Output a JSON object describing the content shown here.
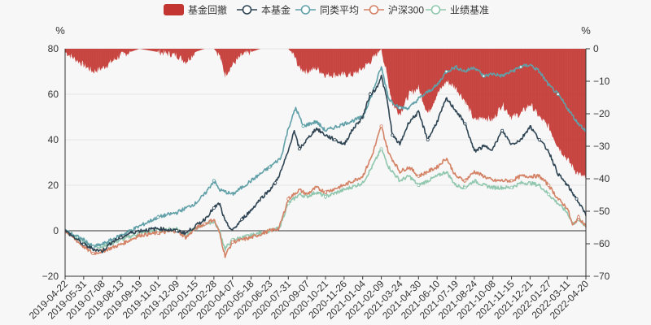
{
  "chart_data": {
    "type": "line",
    "left_axis": {
      "unit": "%",
      "min": -20,
      "max": 80,
      "ticks": [
        "80",
        "60",
        "40",
        "20",
        "0",
        "−20"
      ]
    },
    "right_axis": {
      "unit": "%",
      "min": -70,
      "max": 0,
      "ticks": [
        "0",
        "−10",
        "−20",
        "−30",
        "−40",
        "−50",
        "−60",
        "−70"
      ]
    },
    "x_tick_labels": [
      "2019-04-22",
      "2019-05-31",
      "2019-07-08",
      "2019-08-13",
      "2019-09-19",
      "2019-11-01",
      "2019-12-09",
      "2020-01-15",
      "2020-02-28",
      "2020-04-07",
      "2020-05-18",
      "2020-06-23",
      "2020-07-31",
      "2020-09-07",
      "2020-10-21",
      "2020-11-26",
      "2021-01-04",
      "2021-02-09",
      "2021-03-24",
      "2021-04-30",
      "2021-06-10",
      "2021-07-19",
      "2021-08-24",
      "2021-10-08",
      "2021-11-15",
      "2021-12-21",
      "2022-01-27",
      "2022-03-11",
      "2022-04-20"
    ],
    "legend": [
      {
        "name": "基金回撤",
        "color": "#c23531",
        "kind": "bar"
      },
      {
        "name": "本基金",
        "color": "#2f4554",
        "kind": "line"
      },
      {
        "name": "同类平均",
        "color": "#61a0a8",
        "kind": "line"
      },
      {
        "name": "沪深300",
        "color": "#d48265",
        "kind": "line"
      },
      {
        "name": "业绩基准",
        "color": "#91c7ae",
        "kind": "line"
      }
    ],
    "grid": true,
    "legend_position": "top-center",
    "series": [
      {
        "name": "本基金",
        "axis": "left",
        "color": "#2f4554",
        "points": [
          [
            0,
            0
          ],
          [
            0.5,
            -3
          ],
          [
            1,
            -6
          ],
          [
            1.5,
            -8
          ],
          [
            2,
            -9
          ],
          [
            2.5,
            -5
          ],
          [
            3,
            -3
          ],
          [
            3.5,
            -1
          ],
          [
            4,
            0
          ],
          [
            5,
            1
          ],
          [
            6,
            0
          ],
          [
            6.5,
            -1
          ],
          [
            7,
            2
          ],
          [
            7.5,
            5
          ],
          [
            8,
            10
          ],
          [
            8.3,
            12
          ],
          [
            8.6,
            4
          ],
          [
            9,
            0
          ],
          [
            9.5,
            5
          ],
          [
            10,
            9
          ],
          [
            10.5,
            14
          ],
          [
            11,
            18
          ],
          [
            11.3,
            21
          ],
          [
            11.6,
            26
          ],
          [
            12,
            35
          ],
          [
            12.3,
            44
          ],
          [
            12.6,
            36
          ],
          [
            13,
            40
          ],
          [
            13.5,
            45
          ],
          [
            14,
            42
          ],
          [
            14.5,
            40
          ],
          [
            15,
            38
          ],
          [
            15.5,
            45
          ],
          [
            16,
            50
          ],
          [
            16.4,
            60
          ],
          [
            16.7,
            62
          ],
          [
            17,
            68
          ],
          [
            17.3,
            58
          ],
          [
            17.6,
            42
          ],
          [
            18,
            38
          ],
          [
            18.5,
            48
          ],
          [
            19,
            52
          ],
          [
            19.5,
            40
          ],
          [
            20,
            48
          ],
          [
            20.5,
            58
          ],
          [
            21,
            53
          ],
          [
            21.5,
            47
          ],
          [
            22,
            35
          ],
          [
            22.5,
            37
          ],
          [
            23,
            36
          ],
          [
            23.5,
            44
          ],
          [
            24,
            38
          ],
          [
            24.5,
            40
          ],
          [
            25,
            46
          ],
          [
            25.5,
            40
          ],
          [
            26,
            35
          ],
          [
            26.5,
            25
          ],
          [
            27,
            20
          ],
          [
            27.5,
            14
          ],
          [
            28,
            7
          ]
        ]
      },
      {
        "name": "同类平均",
        "axis": "left",
        "color": "#61a0a8",
        "points": [
          [
            0,
            0
          ],
          [
            1,
            -4
          ],
          [
            1.5,
            -7
          ],
          [
            2,
            -6
          ],
          [
            3,
            -2
          ],
          [
            4,
            2
          ],
          [
            5,
            6
          ],
          [
            6,
            8
          ],
          [
            7,
            12
          ],
          [
            7.5,
            16
          ],
          [
            8,
            22
          ],
          [
            8.3,
            18
          ],
          [
            9,
            16
          ],
          [
            10,
            22
          ],
          [
            11,
            28
          ],
          [
            11.6,
            32
          ],
          [
            12,
            45
          ],
          [
            12.4,
            54
          ],
          [
            12.8,
            46
          ],
          [
            13.5,
            48
          ],
          [
            14,
            44
          ],
          [
            15,
            47
          ],
          [
            16,
            50
          ],
          [
            16.5,
            60
          ],
          [
            17,
            72
          ],
          [
            17.4,
            58
          ],
          [
            18,
            54
          ],
          [
            18.5,
            54
          ],
          [
            19,
            58
          ],
          [
            20,
            64
          ],
          [
            20.5,
            70
          ],
          [
            21,
            72
          ],
          [
            21.5,
            70
          ],
          [
            22,
            72
          ],
          [
            22.5,
            68
          ],
          [
            23,
            69
          ],
          [
            23.5,
            68
          ],
          [
            24,
            70
          ],
          [
            24.5,
            72
          ],
          [
            25,
            73
          ],
          [
            25.5,
            70
          ],
          [
            26,
            64
          ],
          [
            26.5,
            60
          ],
          [
            27,
            54
          ],
          [
            27.5,
            48
          ],
          [
            28,
            44
          ]
        ]
      },
      {
        "name": "沪深300",
        "axis": "left",
        "color": "#d48265",
        "points": [
          [
            0,
            0
          ],
          [
            1,
            -7
          ],
          [
            1.5,
            -10
          ],
          [
            2,
            -9
          ],
          [
            3,
            -6
          ],
          [
            4,
            -2
          ],
          [
            5,
            -1
          ],
          [
            6,
            0
          ],
          [
            6.5,
            -3
          ],
          [
            7,
            1
          ],
          [
            7.5,
            3
          ],
          [
            8,
            5
          ],
          [
            8.3,
            -1
          ],
          [
            8.6,
            -11
          ],
          [
            9,
            -5
          ],
          [
            10,
            -3
          ],
          [
            11,
            0
          ],
          [
            11.5,
            1
          ],
          [
            12,
            14
          ],
          [
            12.6,
            18
          ],
          [
            13,
            16
          ],
          [
            13.5,
            19
          ],
          [
            14,
            17
          ],
          [
            15,
            20
          ],
          [
            16,
            24
          ],
          [
            16.5,
            33
          ],
          [
            17,
            46
          ],
          [
            17.4,
            34
          ],
          [
            18,
            26
          ],
          [
            18.5,
            28
          ],
          [
            19,
            24
          ],
          [
            20,
            28
          ],
          [
            20.5,
            32
          ],
          [
            21,
            24
          ],
          [
            21.5,
            22
          ],
          [
            22,
            26
          ],
          [
            22.5,
            24
          ],
          [
            23,
            22
          ],
          [
            24,
            22
          ],
          [
            24.5,
            24
          ],
          [
            25,
            24
          ],
          [
            25.5,
            24
          ],
          [
            26,
            20
          ],
          [
            26.5,
            14
          ],
          [
            27,
            10
          ],
          [
            27.3,
            2
          ],
          [
            27.6,
            6
          ],
          [
            28,
            2
          ]
        ]
      },
      {
        "name": "业绩基准",
        "axis": "left",
        "color": "#91c7ae",
        "points": [
          [
            0,
            0
          ],
          [
            1,
            -5
          ],
          [
            1.5,
            -7
          ],
          [
            2,
            -7
          ],
          [
            3,
            -4
          ],
          [
            4,
            -1
          ],
          [
            5,
            0
          ],
          [
            6,
            1
          ],
          [
            6.5,
            -2
          ],
          [
            7,
            1
          ],
          [
            7.5,
            3
          ],
          [
            8,
            4
          ],
          [
            8.3,
            0
          ],
          [
            8.6,
            -8
          ],
          [
            9,
            -4
          ],
          [
            10,
            -2
          ],
          [
            11,
            0
          ],
          [
            11.5,
            1
          ],
          [
            12,
            12
          ],
          [
            12.6,
            16
          ],
          [
            13,
            15
          ],
          [
            13.5,
            17
          ],
          [
            14,
            15
          ],
          [
            15,
            18
          ],
          [
            16,
            21
          ],
          [
            16.5,
            28
          ],
          [
            17,
            36
          ],
          [
            17.4,
            28
          ],
          [
            18,
            22
          ],
          [
            18.5,
            24
          ],
          [
            19,
            20
          ],
          [
            20,
            24
          ],
          [
            20.5,
            26
          ],
          [
            21,
            20
          ],
          [
            21.5,
            19
          ],
          [
            22,
            22
          ],
          [
            22.5,
            20
          ],
          [
            23,
            19
          ],
          [
            24,
            19
          ],
          [
            24.5,
            21
          ],
          [
            25,
            21
          ],
          [
            25.5,
            20
          ],
          [
            26,
            16
          ],
          [
            26.5,
            12
          ],
          [
            27,
            8
          ],
          [
            27.3,
            3
          ],
          [
            27.6,
            5
          ],
          [
            28,
            2
          ]
        ]
      },
      {
        "name": "基金回撤",
        "axis": "right",
        "color": "#c23531",
        "kind": "area",
        "points": [
          [
            0,
            -1
          ],
          [
            0.5,
            -3
          ],
          [
            1,
            -5
          ],
          [
            1.5,
            -7
          ],
          [
            2,
            -6
          ],
          [
            2.5,
            -4
          ],
          [
            3,
            -2
          ],
          [
            3.5,
            -1
          ],
          [
            4,
            0
          ],
          [
            5,
            -1
          ],
          [
            6,
            -2
          ],
          [
            6.5,
            -4
          ],
          [
            7,
            -1
          ],
          [
            7.5,
            0
          ],
          [
            8,
            0
          ],
          [
            8.3,
            -2
          ],
          [
            8.6,
            -8
          ],
          [
            9,
            -5
          ],
          [
            9.5,
            -2
          ],
          [
            10,
            -1
          ],
          [
            10.5,
            0
          ],
          [
            11,
            0
          ],
          [
            11.6,
            0
          ],
          [
            12,
            0
          ],
          [
            12.3,
            -2
          ],
          [
            12.6,
            -6
          ],
          [
            13,
            -7
          ],
          [
            13.5,
            -6
          ],
          [
            14,
            -8
          ],
          [
            14.5,
            -8
          ],
          [
            15,
            -8
          ],
          [
            15.5,
            -8
          ],
          [
            16,
            -6
          ],
          [
            16.4,
            -4
          ],
          [
            16.7,
            -2
          ],
          [
            17,
            0
          ],
          [
            17.3,
            -8
          ],
          [
            17.6,
            -17
          ],
          [
            18,
            -20
          ],
          [
            18.5,
            -14
          ],
          [
            19,
            -12
          ],
          [
            19.5,
            -20
          ],
          [
            20,
            -14
          ],
          [
            20.5,
            -10
          ],
          [
            21,
            -12
          ],
          [
            21.5,
            -16
          ],
          [
            22,
            -22
          ],
          [
            22.5,
            -21
          ],
          [
            23,
            -22
          ],
          [
            23.5,
            -17
          ],
          [
            24,
            -21
          ],
          [
            24.5,
            -20
          ],
          [
            25,
            -17
          ],
          [
            25.5,
            -21
          ],
          [
            26,
            -24
          ],
          [
            26.5,
            -30
          ],
          [
            27,
            -34
          ],
          [
            27.5,
            -38
          ],
          [
            28,
            -40
          ]
        ]
      }
    ]
  }
}
